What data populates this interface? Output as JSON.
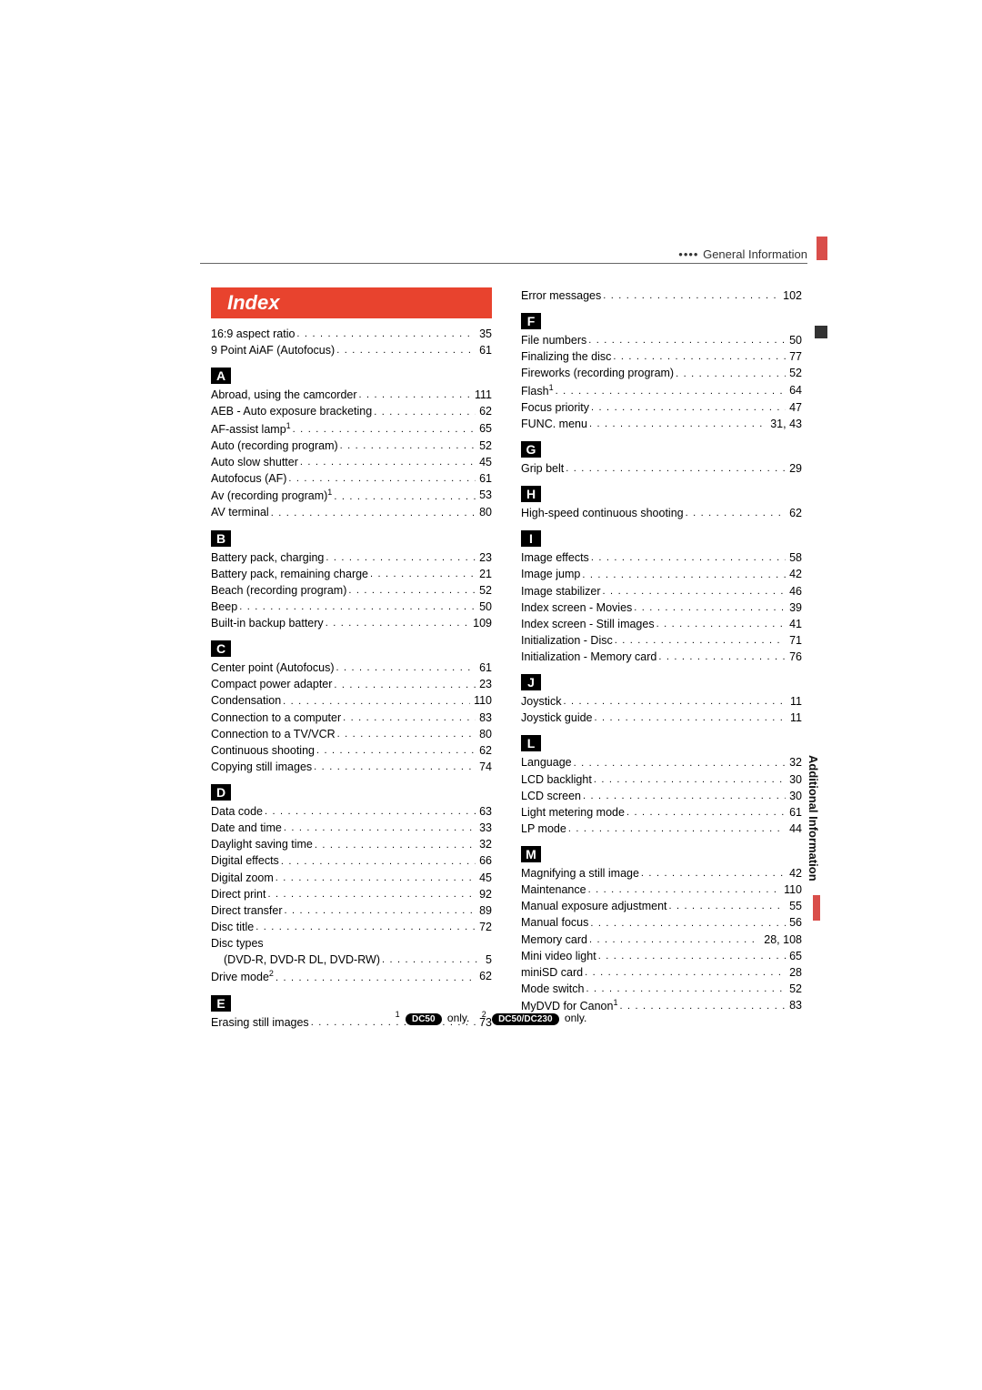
{
  "header": "General Information",
  "sidebar_label": "Additional Information",
  "index_title": "Index",
  "footer": {
    "note1_sup": "1",
    "note1_badge": "DC50",
    "note1_suffix": " only.",
    "note2_sup": "2",
    "note2_badge": "DC50/DC230",
    "note2_suffix": " only."
  },
  "left": [
    {
      "type": "pre",
      "entries": [
        {
          "label": "16:9 aspect ratio",
          "page": "35"
        },
        {
          "label": "9 Point AiAF (Autofocus)",
          "page": "61"
        }
      ]
    },
    {
      "type": "letter",
      "letter": "A",
      "entries": [
        {
          "label": "Abroad, using the camcorder",
          "page": "111"
        },
        {
          "label": "AEB - Auto exposure bracketing",
          "page": "62"
        },
        {
          "label": "AF-assist lamp",
          "sup": "1",
          "page": "65"
        },
        {
          "label": "Auto (recording program)",
          "page": "52"
        },
        {
          "label": "Auto slow shutter",
          "page": "45"
        },
        {
          "label": "Autofocus (AF)",
          "page": "61"
        },
        {
          "label": "Av (recording program)",
          "sup": "1",
          "page": "53"
        },
        {
          "label": "AV terminal",
          "page": "80"
        }
      ]
    },
    {
      "type": "letter",
      "letter": "B",
      "entries": [
        {
          "label": "Battery pack, charging",
          "page": "23"
        },
        {
          "label": "Battery pack, remaining charge",
          "page": "21"
        },
        {
          "label": "Beach (recording program)",
          "page": "52"
        },
        {
          "label": "Beep",
          "page": "50"
        },
        {
          "label": "Built-in backup battery",
          "page": "109"
        }
      ]
    },
    {
      "type": "letter",
      "letter": "C",
      "entries": [
        {
          "label": "Center point (Autofocus)",
          "page": "61"
        },
        {
          "label": "Compact power adapter",
          "page": "23"
        },
        {
          "label": "Condensation",
          "page": "110"
        },
        {
          "label": "Connection to a computer",
          "page": "83"
        },
        {
          "label": "Connection to a TV/VCR",
          "page": "80"
        },
        {
          "label": "Continuous shooting",
          "page": "62"
        },
        {
          "label": "Copying still images",
          "page": "74"
        }
      ]
    },
    {
      "type": "letter",
      "letter": "D",
      "entries": [
        {
          "label": "Data code",
          "page": "63"
        },
        {
          "label": "Date and time",
          "page": "33"
        },
        {
          "label": "Daylight saving time",
          "page": "32"
        },
        {
          "label": "Digital effects",
          "page": "66"
        },
        {
          "label": "Digital zoom",
          "page": "45"
        },
        {
          "label": "Direct print",
          "page": "92"
        },
        {
          "label": "Direct transfer",
          "page": "89"
        },
        {
          "label": "Disc title",
          "page": "72"
        },
        {
          "label": "Disc types",
          "nopage": true
        },
        {
          "label": "(DVD-R, DVD-R DL, DVD-RW)",
          "page": "5",
          "indent": true
        },
        {
          "label": "Drive mode",
          "sup": "2",
          "page": "62"
        }
      ]
    },
    {
      "type": "letter",
      "letter": "E",
      "entries": [
        {
          "label": "Erasing still images",
          "page": "73"
        }
      ]
    }
  ],
  "right": [
    {
      "type": "pre",
      "entries": [
        {
          "label": "Error messages",
          "page": "102"
        }
      ]
    },
    {
      "type": "letter",
      "letter": "F",
      "entries": [
        {
          "label": "File numbers",
          "page": "50"
        },
        {
          "label": "Finalizing the disc",
          "page": "77"
        },
        {
          "label": "Fireworks (recording program)",
          "page": "52"
        },
        {
          "label": "Flash",
          "sup": "1",
          "page": "64"
        },
        {
          "label": "Focus priority",
          "page": "47"
        },
        {
          "label": "FUNC. menu",
          "page": "31, 43"
        }
      ]
    },
    {
      "type": "letter",
      "letter": "G",
      "entries": [
        {
          "label": "Grip belt",
          "page": "29"
        }
      ]
    },
    {
      "type": "letter",
      "letter": "H",
      "entries": [
        {
          "label": "High-speed continuous shooting",
          "page": "62"
        }
      ]
    },
    {
      "type": "letter",
      "letter": "I",
      "entries": [
        {
          "label": "Image effects",
          "page": "58"
        },
        {
          "label": "Image jump",
          "page": "42"
        },
        {
          "label": "Image stabilizer",
          "page": "46"
        },
        {
          "label": "Index screen - Movies",
          "page": "39"
        },
        {
          "label": "Index screen - Still images",
          "page": "41"
        },
        {
          "label": "Initialization - Disc",
          "page": "71"
        },
        {
          "label": "Initialization - Memory card",
          "page": "76"
        }
      ]
    },
    {
      "type": "letter",
      "letter": "J",
      "entries": [
        {
          "label": "Joystick",
          "page": "11"
        },
        {
          "label": "Joystick guide",
          "page": "11"
        }
      ]
    },
    {
      "type": "letter",
      "letter": "L",
      "entries": [
        {
          "label": "Language",
          "page": "32"
        },
        {
          "label": "LCD backlight",
          "page": "30"
        },
        {
          "label": "LCD screen",
          "page": "30"
        },
        {
          "label": "Light metering mode",
          "page": "61"
        },
        {
          "label": "LP mode",
          "page": "44"
        }
      ]
    },
    {
      "type": "letter",
      "letter": "M",
      "entries": [
        {
          "label": "Magnifying a still image",
          "page": "42"
        },
        {
          "label": "Maintenance",
          "page": "110"
        },
        {
          "label": "Manual exposure adjustment",
          "page": "55"
        },
        {
          "label": "Manual focus",
          "page": "56"
        },
        {
          "label": "Memory card",
          "page": "28, 108"
        },
        {
          "label": "Mini video light",
          "page": "65"
        },
        {
          "label": "miniSD card",
          "page": "28"
        },
        {
          "label": "Mode switch",
          "page": "52"
        },
        {
          "label": "MyDVD for Canon",
          "sup": "1",
          "page": "83"
        }
      ]
    }
  ]
}
